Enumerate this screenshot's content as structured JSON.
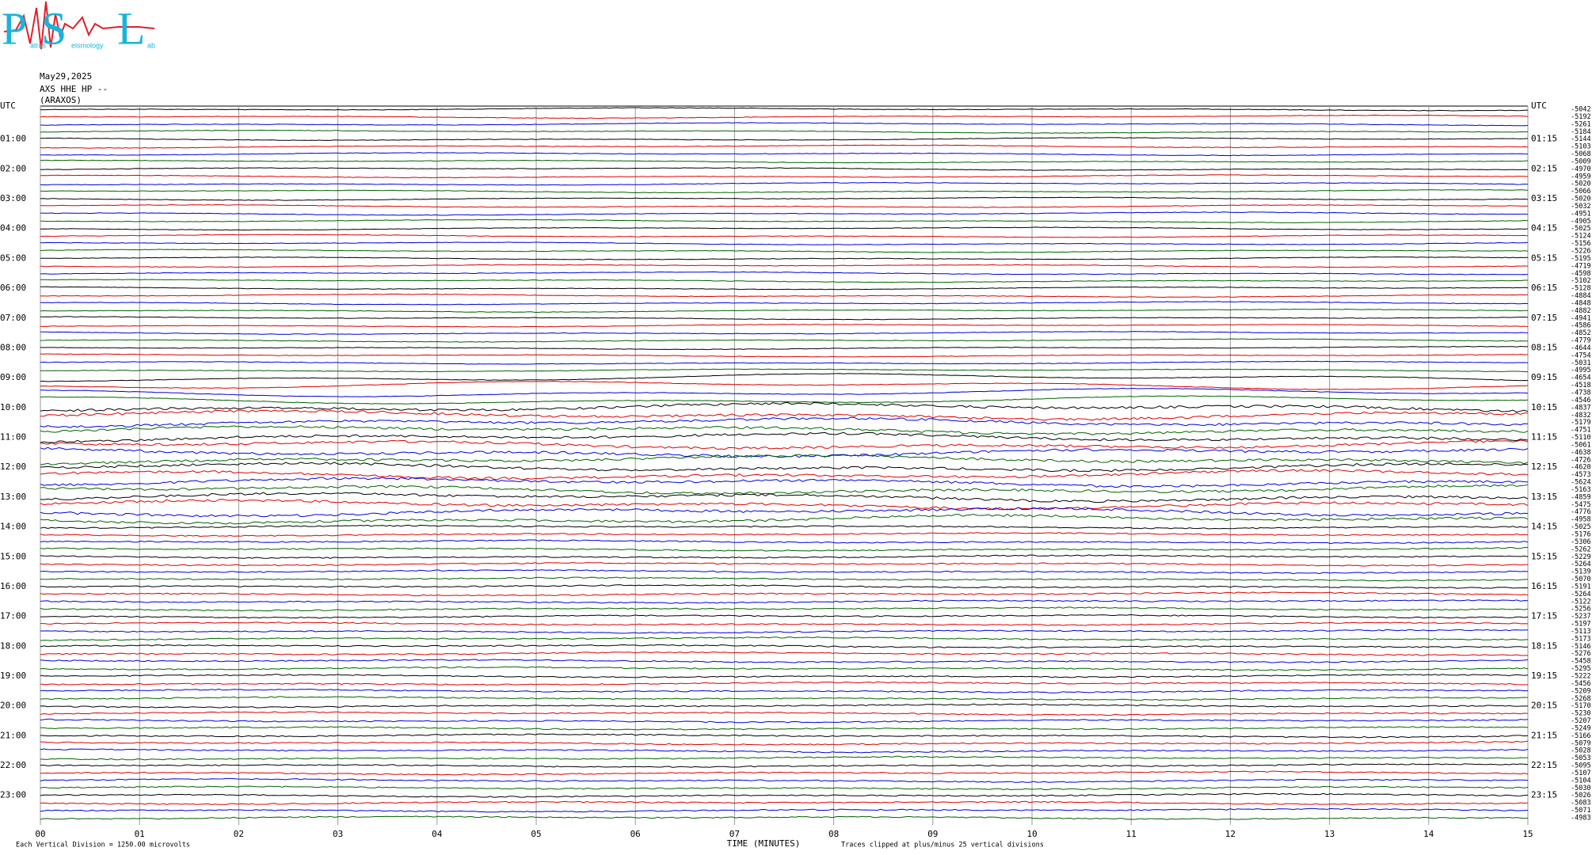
{
  "logo": {
    "letters": [
      "P",
      "S",
      "L"
    ],
    "words": [
      "atras",
      "eismology",
      "ab"
    ]
  },
  "header": {
    "date": "May29,2025",
    "station": "AXS HHE HP --",
    "location": "(ARAXOS)"
  },
  "left_labels": [
    "UTC",
    "01:00",
    "02:00",
    "03:00",
    "04:00",
    "05:00",
    "06:00",
    "07:00",
    "08:00",
    "09:00",
    "10:00",
    "11:00",
    "12:00",
    "13:00",
    "14:00",
    "15:00",
    "16:00",
    "17:00",
    "18:00",
    "19:00",
    "20:00",
    "21:00",
    "22:00",
    "23:00"
  ],
  "right_labels": [
    "UTC",
    "01:15",
    "02:15",
    "03:15",
    "04:15",
    "05:15",
    "06:15",
    "07:15",
    "08:15",
    "09:15",
    "10:15",
    "11:15",
    "12:15",
    "13:15",
    "14:15",
    "15:15",
    "16:15",
    "17:15",
    "18:15",
    "19:15",
    "20:15",
    "21:15",
    "22:15",
    "23:15"
  ],
  "trace_offsets": [
    -5042,
    -5192,
    -5261,
    -5184,
    -5144,
    -5103,
    -5068,
    -5009,
    -4970,
    -4959,
    -5020,
    -5066,
    -5020,
    -5032,
    -4951,
    -4905,
    -5025,
    -5124,
    -5156,
    -5226,
    -5195,
    -4719,
    -4598,
    -5102,
    -5128,
    -4884,
    -4848,
    -4882,
    -4941,
    -4586,
    -4852,
    -4779,
    -4644,
    -4754,
    -5031,
    -4995,
    -4654,
    -4518,
    -4738,
    -4546,
    -4837,
    -4832,
    -5179,
    -4751,
    -5110,
    -5061,
    -4638,
    -4726,
    -4620,
    -4573,
    -5624,
    -5163,
    -4859,
    -5475,
    -4776,
    -4958,
    -5025,
    -5176,
    -5306,
    -5262,
    -5229,
    -5264,
    -5139,
    -5070,
    -5191,
    -5264,
    -5122,
    -5256,
    -5237,
    -5197,
    -5113,
    -5173,
    -5146,
    -5276,
    -5458,
    -5295,
    -5222,
    -5456,
    -5209,
    -5268,
    -5170,
    -5230,
    -5207,
    -5249,
    -5166,
    -5079,
    -5028,
    -5053,
    -5095,
    -5107,
    -5104,
    -5030,
    -5026,
    -5083,
    -5071,
    -4983
  ],
  "trace_colors": [
    "#000000",
    "#e00000",
    "#0000e0",
    "#006400"
  ],
  "x_axis": {
    "ticks": [
      "00",
      "01",
      "02",
      "03",
      "04",
      "05",
      "06",
      "07",
      "08",
      "09",
      "10",
      "11",
      "12",
      "13",
      "14",
      "15"
    ],
    "title": "TIME (MINUTES)"
  },
  "footer": {
    "division": "Each Vertical Division = 1250.00 microvolts",
    "clip": "Traces clipped at plus/minus 25 vertical divisions"
  }
}
